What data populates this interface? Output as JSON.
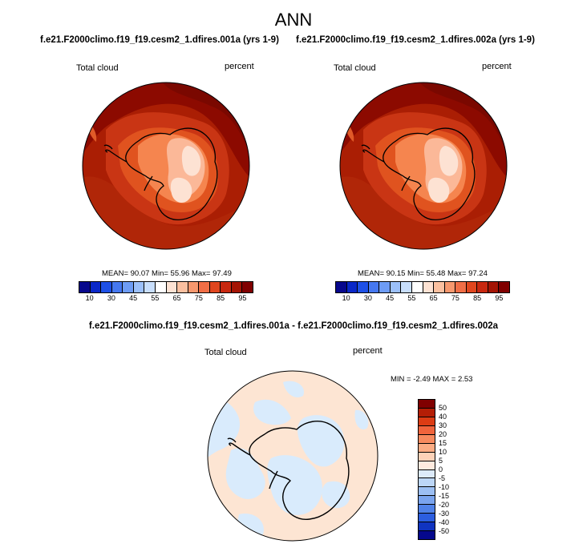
{
  "figure": {
    "season": "ANN",
    "panel_left": {
      "case_title": "f.e21.F2000climo.f19_f19.cesm2_1.dfires.001a (yrs 1-9)",
      "variable": "Total cloud",
      "units": "percent",
      "stats_text": "MEAN=  90.07  Min=  55.96  Max=  97.49",
      "colors": {
        "ocean": "#aa1e04",
        "ocean_dark": "#8c0a00",
        "mid": "#d6431c",
        "light": "#f5854f",
        "lighter": "#fbb898",
        "palest": "#fde2d3"
      }
    },
    "panel_right": {
      "case_title": "f.e21.F2000climo.f19_f19.cesm2_1.dfires.002a (yrs 1-9)",
      "variable": "Total cloud",
      "units": "percent",
      "stats_text": "MEAN=  90.15  Min=  55.48  Max=  97.24"
    },
    "panel_diff": {
      "case_title": "f.e21.F2000climo.f19_f19.cesm2_1.dfires.001a - f.e21.F2000climo.f19_f19.cesm2_1.dfires.002a",
      "variable": "Total cloud",
      "units": "percent",
      "stats_text": "MIN =  -2.49 MAX =   2.53",
      "colors": {
        "positive": "#fde5d3",
        "negative": "#d9ebfc"
      }
    },
    "colorbar_main": {
      "colors": [
        "#08088c",
        "#0a28c8",
        "#1e50e6",
        "#4678f0",
        "#6e9cf5",
        "#9cc0fa",
        "#c8defc",
        "#ffffff",
        "#fde2d3",
        "#fbc0a0",
        "#f7986e",
        "#f06e46",
        "#e0461e",
        "#c82810",
        "#a41404",
        "#800000"
      ],
      "tick_labels": [
        "10",
        "30",
        "45",
        "55",
        "65",
        "75",
        "85",
        "95"
      ]
    },
    "colorbar_diff": {
      "colors": [
        "#800000",
        "#b41e06",
        "#dc3c14",
        "#f0643c",
        "#f78a5e",
        "#fbac84",
        "#fdd2b8",
        "#ffeade",
        "#dceafa",
        "#bcd6f7",
        "#9cbff3",
        "#7aa4ee",
        "#5082e8",
        "#2c5ee0",
        "#1034c0",
        "#05088c"
      ],
      "tick_labels": [
        "50",
        "40",
        "30",
        "20",
        "15",
        "10",
        "5",
        "0",
        "-5",
        "-10",
        "-15",
        "-20",
        "-30",
        "-40",
        "-50"
      ]
    }
  }
}
